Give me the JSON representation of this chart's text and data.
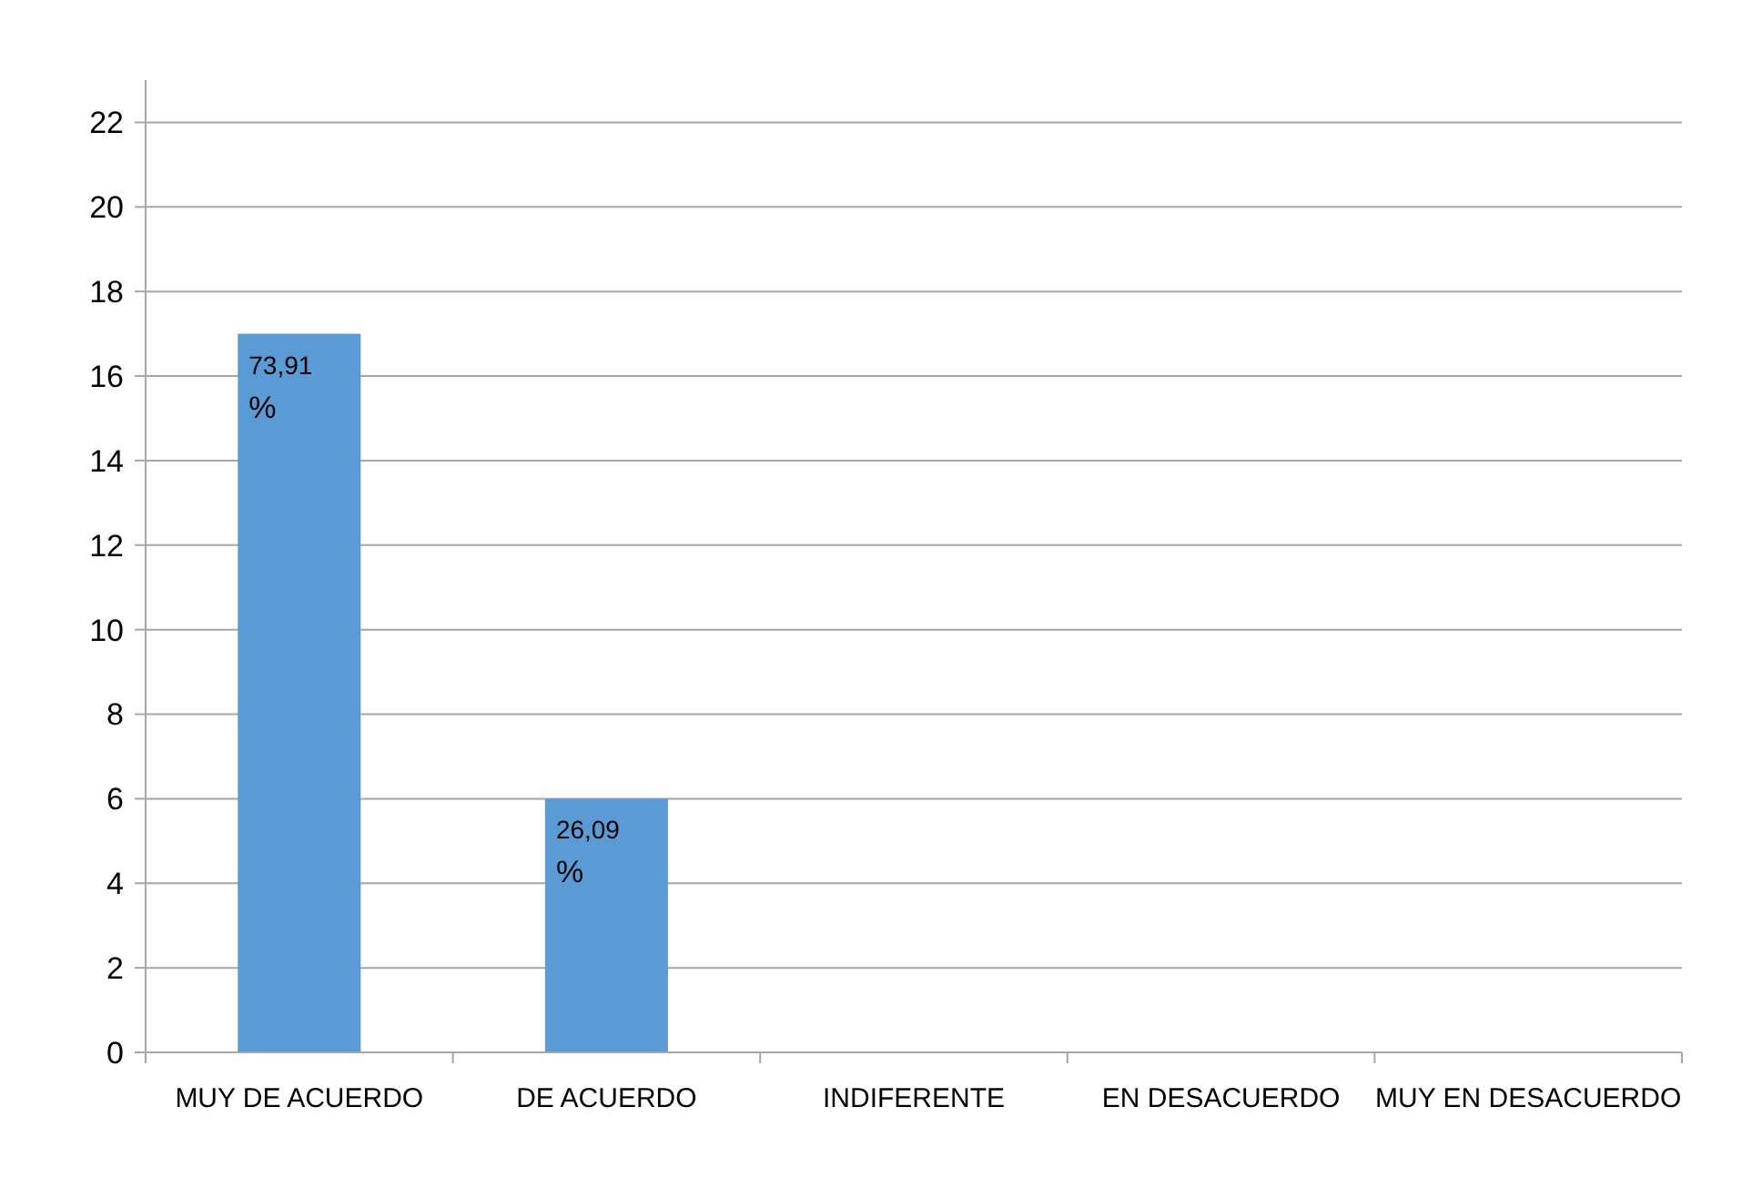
{
  "chart_data": {
    "type": "bar",
    "categories": [
      "MUY DE ACUERDO",
      "DE ACUERDO",
      "INDIFERENTE",
      "EN DESACUERDO",
      "MUY EN DESACUERDO"
    ],
    "values": [
      17,
      6,
      null,
      null,
      null
    ],
    "annotations": [
      {
        "text": "73,91 %",
        "x": "MUY DE ACUERDO",
        "y": 17
      },
      {
        "text": "26,09 %",
        "x": "DE ACUERDO",
        "y": 6
      }
    ],
    "color": "#5b9bd5",
    "ylim": [
      0,
      23
    ],
    "yticks": [
      0,
      2,
      4,
      6,
      8,
      10,
      12,
      14,
      16,
      18,
      20,
      22
    ],
    "grid": "y"
  }
}
